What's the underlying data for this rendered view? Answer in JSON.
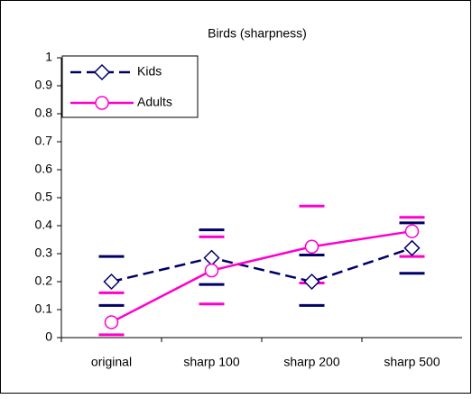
{
  "chart_data": {
    "type": "line",
    "title": "Birds (sharpness)",
    "categories": [
      "original",
      "sharp 100",
      "sharp 200",
      "sharp 500"
    ],
    "series": [
      {
        "name": "Kids",
        "color": "#000066",
        "dashed": true,
        "marker": "diamond",
        "values": [
          0.2,
          0.285,
          0.2,
          0.32
        ],
        "error_high": [
          0.09,
          0.1,
          0.095,
          0.09
        ],
        "error_low": [
          0.085,
          0.095,
          0.085,
          0.09
        ]
      },
      {
        "name": "Adults",
        "color": "#ff00cc",
        "dashed": false,
        "marker": "circle",
        "values": [
          0.055,
          0.24,
          0.325,
          0.38
        ],
        "error_high": [
          0.105,
          0.12,
          0.145,
          0.05
        ],
        "error_low": [
          0.045,
          0.12,
          0.13,
          0.09
        ]
      }
    ],
    "ylim": [
      0,
      1
    ],
    "yticks": [
      0,
      0.1,
      0.2,
      0.3,
      0.4,
      0.5,
      0.6,
      0.7,
      0.8,
      0.9,
      1
    ],
    "grid": false,
    "legend": "upper-left"
  }
}
